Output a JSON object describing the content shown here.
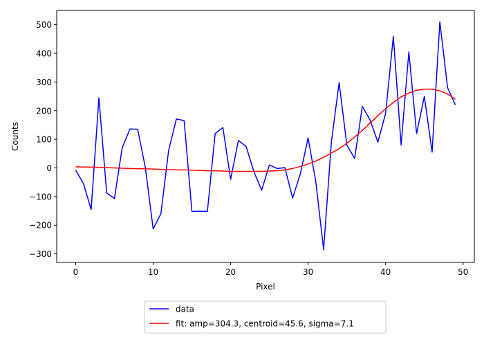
{
  "chart_data": {
    "type": "line",
    "xlabel": "Pixel",
    "ylabel": "Counts",
    "xlim": [
      -2.45,
      51.45
    ],
    "ylim": [
      -330,
      550
    ],
    "xticks": [
      0,
      10,
      20,
      30,
      40,
      50
    ],
    "yticks": [
      -300,
      -200,
      -100,
      0,
      100,
      200,
      300,
      400,
      500
    ],
    "legend_position": "below plot, centered",
    "grid": false,
    "x": [
      0,
      1,
      2,
      3,
      4,
      5,
      6,
      7,
      8,
      9,
      10,
      11,
      12,
      13,
      14,
      15,
      16,
      17,
      18,
      19,
      20,
      21,
      22,
      23,
      24,
      25,
      26,
      27,
      28,
      29,
      30,
      31,
      32,
      33,
      34,
      35,
      36,
      37,
      38,
      39,
      40,
      41,
      42,
      43,
      44,
      45,
      46,
      47,
      48,
      49
    ],
    "series": [
      {
        "name": "data",
        "color": "#0000ff",
        "values": [
          -8,
          -55,
          -145,
          245,
          -87,
          -107,
          70,
          136,
          135,
          0,
          -213,
          -160,
          62,
          171,
          165,
          -152,
          -151,
          -152,
          120,
          141,
          -40,
          96,
          75,
          -13,
          -78,
          10,
          -2,
          1,
          -105,
          -20,
          105,
          -50,
          -285,
          90,
          298,
          80,
          33,
          215,
          167,
          90,
          190,
          460,
          80,
          405,
          120,
          250,
          55,
          510,
          280,
          220
        ]
      },
      {
        "name": "fit: amp=304.3, centroid=45.6, sigma=7.1",
        "color": "#ff0000",
        "values": [
          4,
          3,
          3,
          2,
          1,
          0,
          -1,
          -2,
          -3,
          -3,
          -4,
          -5,
          -6,
          -7,
          -7,
          -8,
          -9,
          -10,
          -10,
          -11,
          -12,
          -12,
          -12,
          -12,
          -12,
          -11,
          -10,
          -7,
          -2,
          5,
          14,
          24,
          37,
          52,
          67,
          86,
          108,
          131,
          157,
          182,
          207,
          229,
          248,
          262,
          271,
          275,
          275,
          269,
          258,
          240
        ]
      }
    ]
  }
}
